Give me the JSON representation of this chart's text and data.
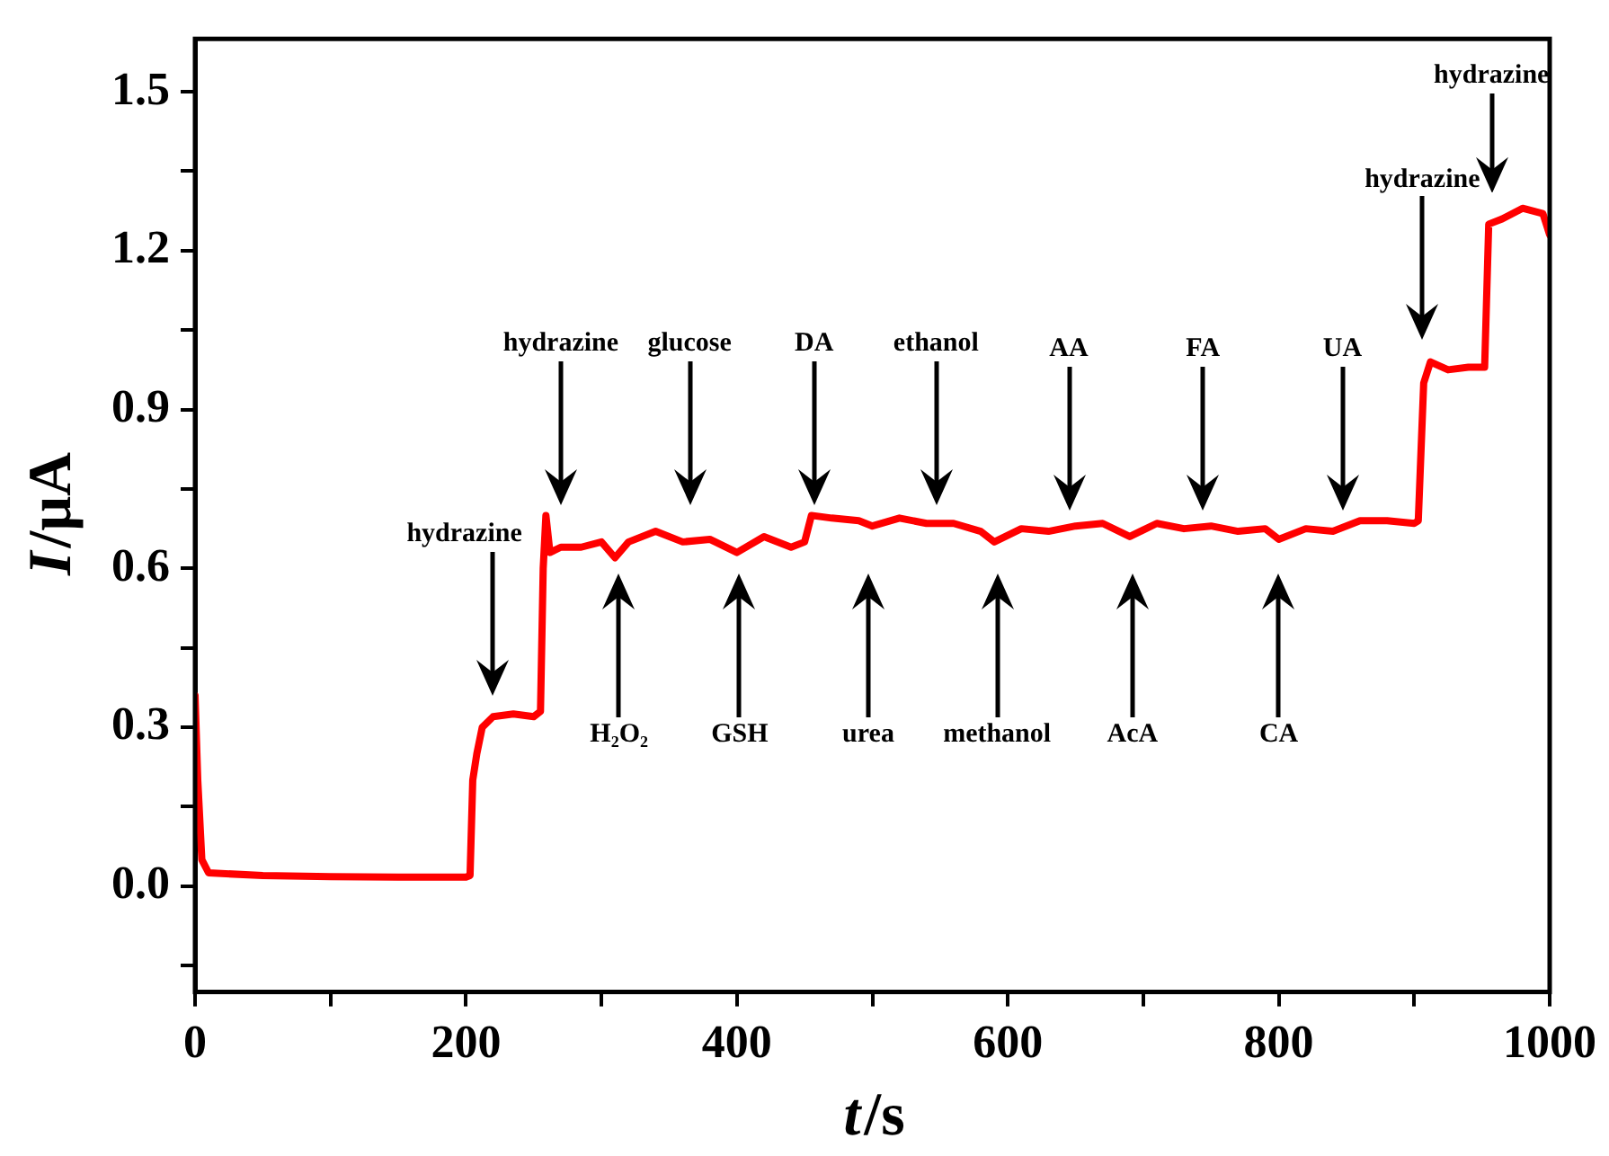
{
  "chart_data": {
    "type": "line",
    "xlabel": "t/s",
    "ylabel": "I/μA",
    "xlim": [
      0,
      1000
    ],
    "xticks": [
      0,
      {
        "value": 100,
        "label": null
      },
      200,
      {
        "value": 300,
        "label": null
      },
      400,
      {
        "value": 500,
        "label": null
      },
      600,
      {
        "value": 700,
        "label": null
      },
      800,
      {
        "value": 900,
        "label": null
      },
      1000
    ],
    "ylim": [
      -0.2,
      1.6
    ],
    "yticks": [
      {
        "value": -0.15,
        "label": null
      },
      {
        "value": 0,
        "label": "0.0"
      },
      {
        "value": 0.15,
        "label": null
      },
      0.3,
      {
        "value": 0.45,
        "label": null
      },
      0.6,
      {
        "value": 0.75,
        "label": null
      },
      0.9,
      {
        "value": 1.05,
        "label": null
      },
      1.2,
      {
        "value": 1.35,
        "label": null
      },
      1.5
    ],
    "grid": false,
    "legend": false,
    "marker": "none",
    "line_style": "solid",
    "series": [
      {
        "color": "#ff0000",
        "x": [
          0,
          2,
          5,
          10,
          50,
          100,
          150,
          200,
          203,
          205,
          208,
          212,
          220,
          235,
          250,
          255,
          257,
          259,
          262,
          270,
          285,
          300,
          310,
          320,
          340,
          360,
          380,
          400,
          420,
          440,
          450,
          455,
          470,
          490,
          500,
          520,
          540,
          560,
          580,
          590,
          610,
          630,
          650,
          670,
          690,
          710,
          730,
          750,
          770,
          790,
          800,
          820,
          840,
          860,
          880,
          900,
          903,
          907,
          912,
          925,
          940,
          952,
          955,
          965,
          980,
          995,
          1000
        ],
        "values": [
          0.36,
          0.2,
          0.05,
          0.025,
          0.02,
          0.018,
          0.017,
          0.017,
          0.02,
          0.2,
          0.25,
          0.3,
          0.32,
          0.325,
          0.32,
          0.33,
          0.6,
          0.7,
          0.63,
          0.64,
          0.64,
          0.65,
          0.62,
          0.65,
          0.67,
          0.65,
          0.655,
          0.63,
          0.66,
          0.64,
          0.65,
          0.7,
          0.695,
          0.69,
          0.68,
          0.695,
          0.685,
          0.685,
          0.67,
          0.65,
          0.675,
          0.67,
          0.68,
          0.685,
          0.66,
          0.685,
          0.675,
          0.68,
          0.67,
          0.675,
          0.655,
          0.675,
          0.67,
          0.69,
          0.69,
          0.685,
          0.69,
          0.95,
          0.99,
          0.975,
          0.98,
          0.98,
          1.25,
          1.26,
          1.28,
          1.27,
          1.23
        ]
      }
    ],
    "annotations": [
      "hydrazine",
      "hydrazine",
      "H₂O₂",
      "glucose",
      "GSH",
      "DA",
      "urea",
      "ethanol",
      "methanol",
      "AA",
      "AcA",
      "FA",
      "CA",
      "UA",
      "hydrazine",
      "hydrazine"
    ]
  }
}
